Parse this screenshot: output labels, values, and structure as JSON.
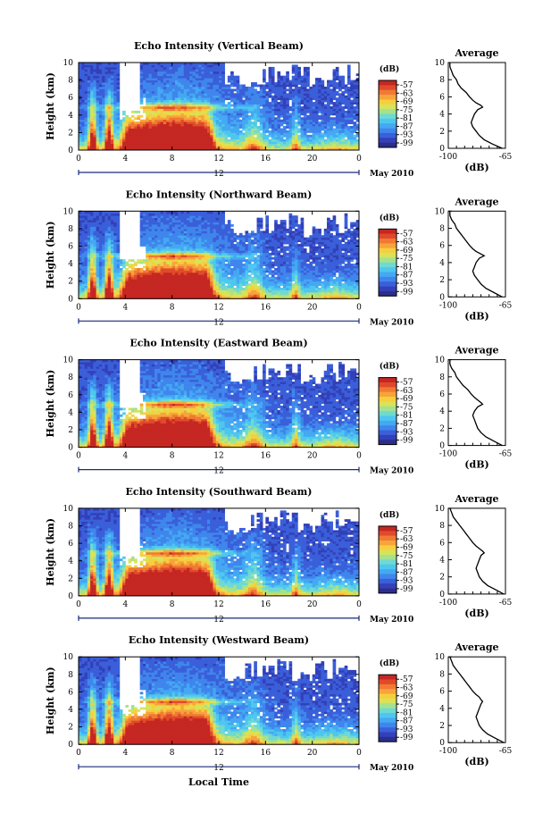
{
  "figure": {
    "xlabel": "Local Time",
    "date_label": "May 2010",
    "timebar_label": "12"
  },
  "colors": {
    "scale": [
      "#2c2e8c",
      "#3340b8",
      "#3a5fd9",
      "#3f86ec",
      "#44a8f2",
      "#4ec7ef",
      "#6fd9d2",
      "#a3e28f",
      "#d8e35a",
      "#f6cf3e",
      "#f7a43a",
      "#f07a33",
      "#e04a2b",
      "#c52722"
    ]
  },
  "chart_data": [
    {
      "type": "heatmap",
      "title": "Echo Intensity (Vertical Beam)",
      "ylabel": "Height (km)",
      "x_ticks": [
        "0",
        "4",
        "8",
        "12",
        "16",
        "20",
        "0"
      ],
      "y_ticks": [
        "0",
        "2",
        "4",
        "6",
        "8",
        "10"
      ],
      "xlim": [
        0,
        24
      ],
      "ylim": [
        0,
        10
      ],
      "colorbar": {
        "unit": "(dB)",
        "ticks": [
          "-57",
          "-63",
          "-69",
          "-75",
          "-81",
          "-87",
          "-93",
          "-99"
        ]
      },
      "profile": {
        "title": "Average",
        "xlabel": "(dB)",
        "x_ticks": [
          "-100",
          "-65"
        ],
        "xlim": [
          -100,
          -65
        ],
        "y_ticks": [
          "0",
          "2",
          "4",
          "6",
          "8",
          "10"
        ],
        "ylim": [
          0,
          10
        ],
        "height_km": [
          0.0,
          0.5,
          1.0,
          1.5,
          2.0,
          2.5,
          3.0,
          3.5,
          4.0,
          4.5,
          4.8,
          5.0,
          5.3,
          5.6,
          6.0,
          6.5,
          7.0,
          7.5,
          8.0,
          8.5,
          9.0,
          9.5,
          10.0
        ],
        "db": [
          -67,
          -73,
          -78,
          -81,
          -83,
          -85,
          -86,
          -85,
          -84,
          -82,
          -79,
          -80,
          -83,
          -85,
          -87,
          -89,
          -92,
          -94,
          -95,
          -97,
          -98,
          -99,
          -99
        ]
      }
    },
    {
      "type": "heatmap",
      "title": "Echo Intensity (Northward Beam)",
      "ylabel": "Height (km)",
      "x_ticks": [
        "0",
        "4",
        "8",
        "12",
        "16",
        "20",
        "0"
      ],
      "y_ticks": [
        "0",
        "2",
        "4",
        "6",
        "8",
        "10"
      ],
      "xlim": [
        0,
        24
      ],
      "ylim": [
        0,
        10
      ],
      "colorbar": {
        "unit": "(dB)",
        "ticks": [
          "-57",
          "-63",
          "-69",
          "-75",
          "-81",
          "-87",
          "-93",
          "-99"
        ]
      },
      "profile": {
        "title": "Average",
        "xlabel": "(dB)",
        "x_ticks": [
          "-100",
          "-65"
        ],
        "xlim": [
          -100,
          -65
        ],
        "y_ticks": [
          "0",
          "2",
          "4",
          "6",
          "8",
          "10"
        ],
        "ylim": [
          0,
          10
        ],
        "height_km": [
          0.0,
          0.5,
          1.0,
          1.5,
          2.0,
          2.5,
          3.0,
          3.5,
          4.0,
          4.5,
          4.8,
          5.0,
          5.3,
          5.6,
          6.0,
          6.5,
          7.0,
          7.5,
          8.0,
          8.5,
          9.0,
          9.5,
          10.0
        ],
        "db": [
          -67,
          -72,
          -77,
          -80,
          -82,
          -84,
          -85,
          -84,
          -83,
          -81,
          -78,
          -80,
          -83,
          -85,
          -87,
          -89,
          -91,
          -93,
          -95,
          -96,
          -98,
          -99,
          -99
        ]
      }
    },
    {
      "type": "heatmap",
      "title": "Echo Intensity (Eastward Beam)",
      "ylabel": "Height (km)",
      "x_ticks": [
        "0",
        "4",
        "8",
        "12",
        "16",
        "20",
        "0"
      ],
      "y_ticks": [
        "0",
        "2",
        "4",
        "6",
        "8",
        "10"
      ],
      "xlim": [
        0,
        24
      ],
      "ylim": [
        0,
        10
      ],
      "colorbar": {
        "unit": "(dB)",
        "ticks": [
          "-57",
          "-63",
          "-69",
          "-75",
          "-81",
          "-87",
          "-93",
          "-99"
        ]
      },
      "profile": {
        "title": "Average",
        "xlabel": "(dB)",
        "x_ticks": [
          "-100",
          "-65"
        ],
        "xlim": [
          -100,
          -65
        ],
        "y_ticks": [
          "0",
          "2",
          "4",
          "6",
          "8",
          "10"
        ],
        "ylim": [
          0,
          10
        ],
        "height_km": [
          0.0,
          0.5,
          1.0,
          1.5,
          2.0,
          2.5,
          3.0,
          3.5,
          4.0,
          4.5,
          4.8,
          5.0,
          5.3,
          5.6,
          6.0,
          6.5,
          7.0,
          7.5,
          8.0,
          8.5,
          9.0,
          9.5,
          10.0
        ],
        "db": [
          -67,
          -72,
          -77,
          -80,
          -82,
          -83,
          -84,
          -85,
          -84,
          -82,
          -79,
          -80,
          -82,
          -84,
          -86,
          -88,
          -91,
          -93,
          -95,
          -96,
          -98,
          -99,
          -99
        ]
      }
    },
    {
      "type": "heatmap",
      "title": "Echo Intensity (Southward Beam)",
      "ylabel": "Height (km)",
      "x_ticks": [
        "0",
        "4",
        "8",
        "12",
        "16",
        "20",
        "0"
      ],
      "y_ticks": [
        "0",
        "2",
        "4",
        "6",
        "8",
        "10"
      ],
      "xlim": [
        0,
        24
      ],
      "ylim": [
        0,
        10
      ],
      "colorbar": {
        "unit": "(dB)",
        "ticks": [
          "-57",
          "-63",
          "-69",
          "-75",
          "-81",
          "-87",
          "-93",
          "-99"
        ]
      },
      "profile": {
        "title": "Average",
        "xlabel": "(dB)",
        "x_ticks": [
          "-100",
          "-65"
        ],
        "xlim": [
          -100,
          -65
        ],
        "y_ticks": [
          "0",
          "2",
          "4",
          "6",
          "8",
          "10"
        ],
        "ylim": [
          0,
          10
        ],
        "height_km": [
          0.0,
          0.5,
          1.0,
          1.5,
          2.0,
          2.5,
          3.0,
          3.5,
          4.0,
          4.5,
          4.8,
          5.0,
          5.3,
          5.6,
          6.0,
          6.5,
          7.0,
          7.5,
          8.0,
          8.5,
          9.0,
          9.5,
          10.0
        ],
        "db": [
          -66,
          -71,
          -76,
          -79,
          -81,
          -82,
          -83,
          -82,
          -81,
          -80,
          -78,
          -79,
          -81,
          -83,
          -85,
          -87,
          -89,
          -91,
          -93,
          -95,
          -97,
          -98,
          -99
        ]
      }
    },
    {
      "type": "heatmap",
      "title": "Echo Intensity (Westward Beam)",
      "ylabel": "Height (km)",
      "x_ticks": [
        "0",
        "4",
        "8",
        "12",
        "16",
        "20",
        "0"
      ],
      "y_ticks": [
        "0",
        "2",
        "4",
        "6",
        "8",
        "10"
      ],
      "xlim": [
        0,
        24
      ],
      "ylim": [
        0,
        10
      ],
      "colorbar": {
        "unit": "(dB)",
        "ticks": [
          "-57",
          "-63",
          "-69",
          "-75",
          "-81",
          "-87",
          "-93",
          "-99"
        ]
      },
      "profile": {
        "title": "Average",
        "xlabel": "(dB)",
        "x_ticks": [
          "-100",
          "-65"
        ],
        "xlim": [
          -100,
          -65
        ],
        "y_ticks": [
          "0",
          "2",
          "4",
          "6",
          "8",
          "10"
        ],
        "ylim": [
          0,
          10
        ],
        "height_km": [
          0.0,
          0.5,
          1.0,
          1.5,
          2.0,
          2.5,
          3.0,
          3.5,
          4.0,
          4.5,
          4.8,
          5.0,
          5.3,
          5.6,
          6.0,
          6.5,
          7.0,
          7.5,
          8.0,
          8.5,
          9.0,
          9.5,
          10.0
        ],
        "db": [
          -66,
          -71,
          -76,
          -79,
          -81,
          -82,
          -83,
          -82,
          -81,
          -80,
          -79,
          -80,
          -81,
          -83,
          -85,
          -87,
          -89,
          -91,
          -93,
          -95,
          -97,
          -98,
          -99
        ]
      }
    }
  ]
}
